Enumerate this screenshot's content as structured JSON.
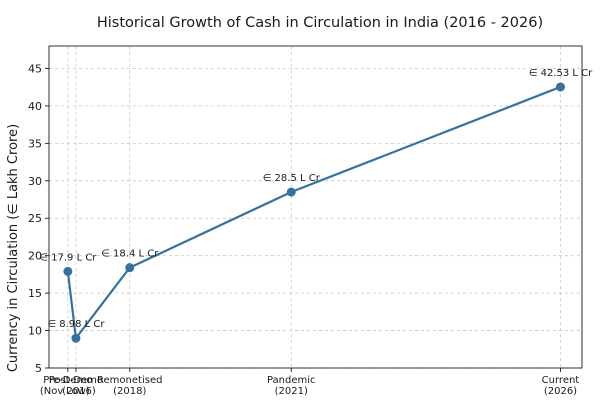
{
  "chart_data": {
    "type": "line",
    "title": "Historical Growth of Cash in Circulation in India (2016 - 2026)",
    "xlabel": "",
    "ylabel": "Currency in Circulation (∈ Lakh Crore)",
    "ylim": [
      5,
      48
    ],
    "yticks": [
      5,
      10,
      15,
      20,
      25,
      30,
      35,
      40,
      45
    ],
    "x": [
      2016.85,
      2017.0,
      2018.0,
      2021.0,
      2026.0
    ],
    "categories": [
      [
        "Pre-Demo",
        "(Nov 2016)"
      ],
      [
        "Post-Demo",
        "(Low)"
      ],
      [
        "Remonetised",
        "(2018)"
      ],
      [
        "Pandemic",
        "(2021)"
      ],
      [
        "Current",
        "(2026)"
      ]
    ],
    "values": [
      17.9,
      8.98,
      18.4,
      28.5,
      42.53
    ],
    "data_labels": [
      "∈ 17.9 L Cr",
      "∈ 8.98 L Cr",
      "∈ 18.4 L Cr",
      "∈ 28.5 L Cr",
      "∈ 42.53 L Cr"
    ],
    "grid": true,
    "color": "#33739e"
  }
}
